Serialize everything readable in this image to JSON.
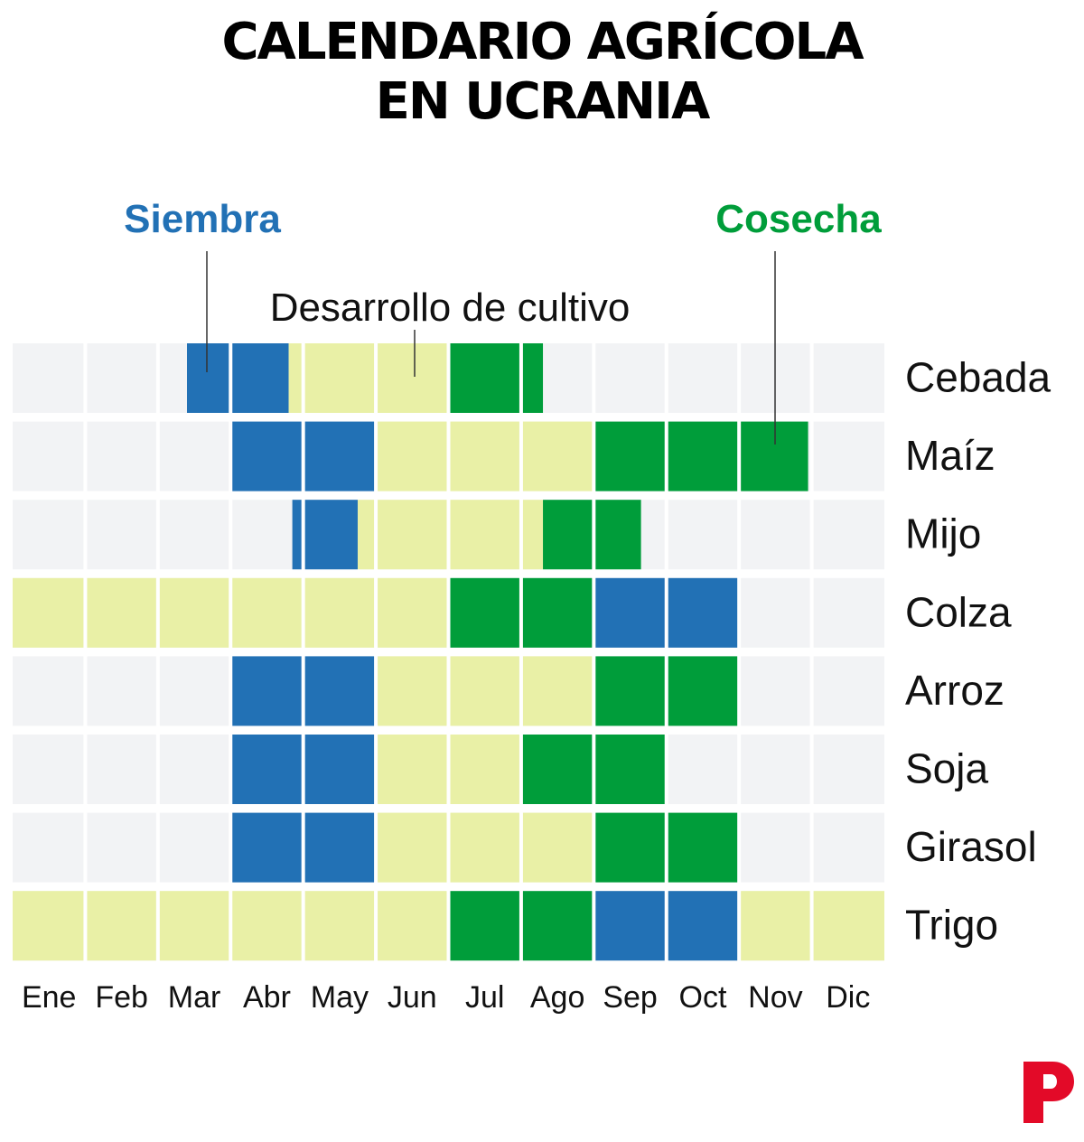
{
  "title": {
    "line1": "CALENDARIO AGRÍCOLA",
    "line2": "EN UCRANIA"
  },
  "legend": {
    "sowing": "Siembra",
    "development": "Desarrollo de cultivo",
    "harvest": "Cosecha"
  },
  "colors": {
    "sowing": "#2271b5",
    "development": "#e9f0a6",
    "harvest": "#009d3a",
    "empty": "#f2f3f5",
    "logo": "#e30a28"
  },
  "chart_data": {
    "type": "heatmap",
    "months": [
      "Ene",
      "Feb",
      "Mar",
      "Abr",
      "May",
      "Jun",
      "Jul",
      "Ago",
      "Sep",
      "Oct",
      "Nov",
      "Dic"
    ],
    "crops": [
      {
        "name": "Cebada",
        "segments": [
          {
            "stage": "sowing",
            "start": 2.4,
            "end": 3.8
          },
          {
            "stage": "development",
            "start": 3.8,
            "end": 6.0
          },
          {
            "stage": "harvest",
            "start": 6.0,
            "end": 7.3
          }
        ]
      },
      {
        "name": "Maíz",
        "segments": [
          {
            "stage": "sowing",
            "start": 3.0,
            "end": 5.0
          },
          {
            "stage": "development",
            "start": 5.0,
            "end": 8.0
          },
          {
            "stage": "harvest",
            "start": 8.0,
            "end": 10.95
          }
        ]
      },
      {
        "name": "Mijo",
        "segments": [
          {
            "stage": "sowing",
            "start": 3.85,
            "end": 4.75
          },
          {
            "stage": "development",
            "start": 4.75,
            "end": 7.3
          },
          {
            "stage": "harvest",
            "start": 7.3,
            "end": 8.65
          }
        ]
      },
      {
        "name": "Colza",
        "segments": [
          {
            "stage": "development",
            "start": 0.0,
            "end": 6.0
          },
          {
            "stage": "harvest",
            "start": 6.0,
            "end": 8.0
          },
          {
            "stage": "sowing",
            "start": 8.0,
            "end": 10.0
          }
        ]
      },
      {
        "name": "Arroz",
        "segments": [
          {
            "stage": "sowing",
            "start": 3.0,
            "end": 5.0
          },
          {
            "stage": "development",
            "start": 5.0,
            "end": 8.0
          },
          {
            "stage": "harvest",
            "start": 8.0,
            "end": 10.0
          }
        ]
      },
      {
        "name": "Soja",
        "segments": [
          {
            "stage": "sowing",
            "start": 3.0,
            "end": 5.0
          },
          {
            "stage": "development",
            "start": 5.0,
            "end": 7.0
          },
          {
            "stage": "harvest",
            "start": 7.0,
            "end": 9.0
          }
        ]
      },
      {
        "name": "Girasol",
        "segments": [
          {
            "stage": "sowing",
            "start": 3.0,
            "end": 5.0
          },
          {
            "stage": "development",
            "start": 5.0,
            "end": 8.0
          },
          {
            "stage": "harvest",
            "start": 8.0,
            "end": 10.0
          }
        ]
      },
      {
        "name": "Trigo",
        "segments": [
          {
            "stage": "development",
            "start": 0.0,
            "end": 6.0
          },
          {
            "stage": "harvest",
            "start": 6.0,
            "end": 8.0
          },
          {
            "stage": "sowing",
            "start": 8.0,
            "end": 10.0
          },
          {
            "stage": "development",
            "start": 10.0,
            "end": 12.0
          }
        ]
      }
    ]
  }
}
